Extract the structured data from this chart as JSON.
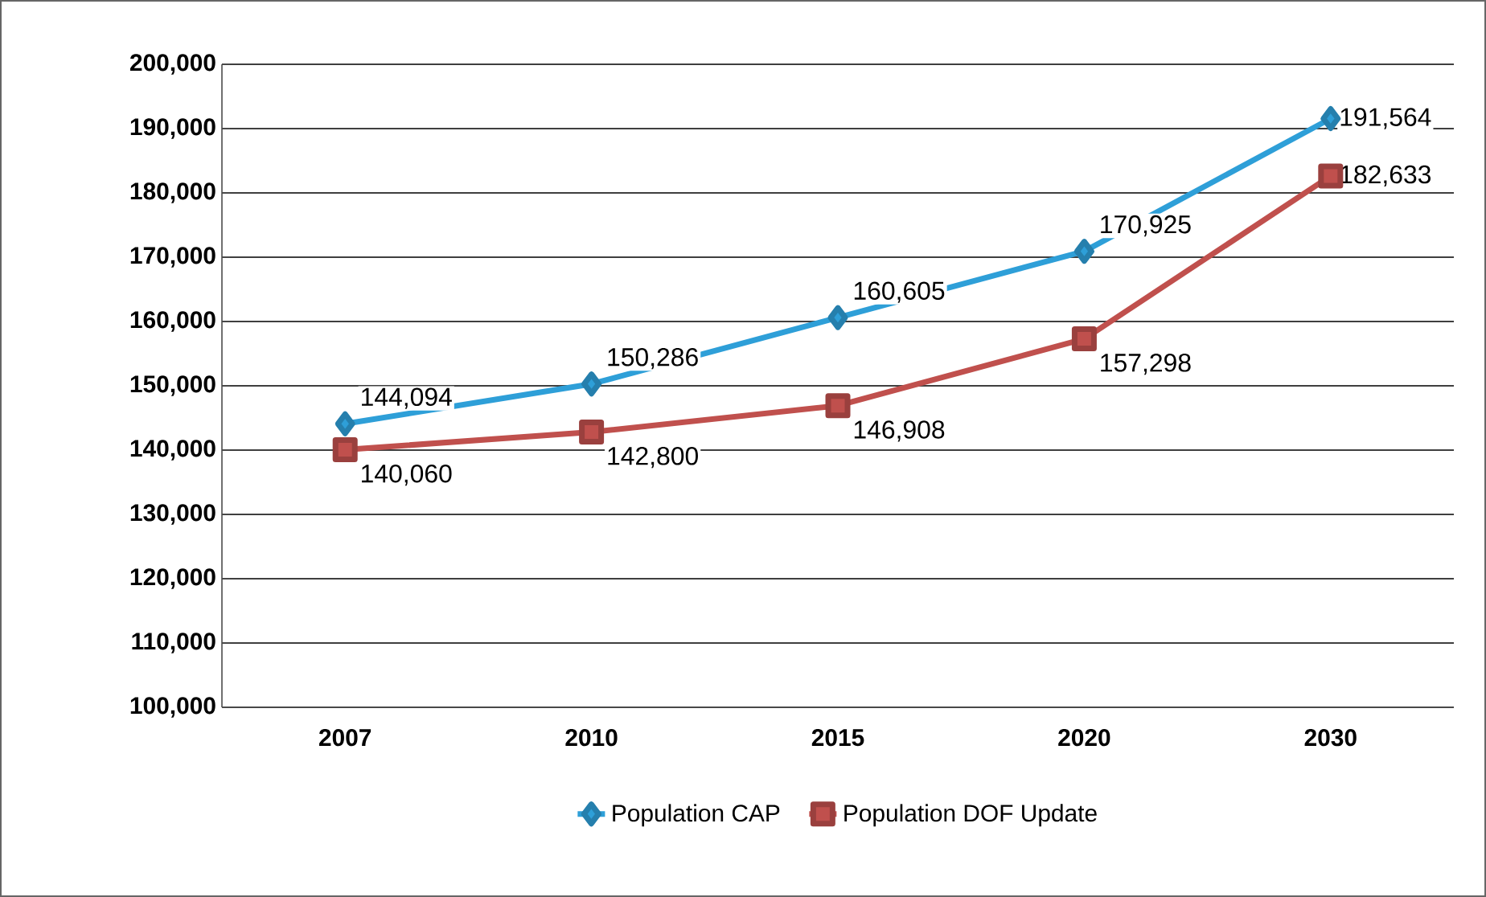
{
  "chart_data": {
    "type": "line",
    "categories": [
      "2007",
      "2010",
      "2015",
      "2020",
      "2030"
    ],
    "series": [
      {
        "name": "Population CAP",
        "color": "#2e9fd8",
        "marker": "diamond",
        "values": [
          144094,
          150286,
          160605,
          170925,
          191564
        ],
        "value_labels": [
          "144,094",
          "150,286",
          "160,605",
          "170,925",
          "191,564"
        ]
      },
      {
        "name": "Population DOF Update",
        "color": "#c0504d",
        "marker": "square",
        "values": [
          140060,
          142800,
          146908,
          157298,
          182633
        ],
        "value_labels": [
          "140,060",
          "142,800",
          "146,908",
          "157,298",
          "182,633"
        ]
      }
    ],
    "ylim": [
      100000,
      200000
    ],
    "yticks": [
      {
        "value": 100000,
        "label": "100,000"
      },
      {
        "value": 110000,
        "label": "110,000"
      },
      {
        "value": 120000,
        "label": "120,000"
      },
      {
        "value": 130000,
        "label": "130,000"
      },
      {
        "value": 140000,
        "label": "140,000"
      },
      {
        "value": 150000,
        "label": "150,000"
      },
      {
        "value": 160000,
        "label": "160,000"
      },
      {
        "value": 170000,
        "label": "170,000"
      },
      {
        "value": 180000,
        "label": "180,000"
      },
      {
        "value": 190000,
        "label": "190,000"
      },
      {
        "value": 200000,
        "label": "200,000"
      }
    ],
    "grid": "y",
    "legend": "bottom",
    "line_style": "solid"
  }
}
